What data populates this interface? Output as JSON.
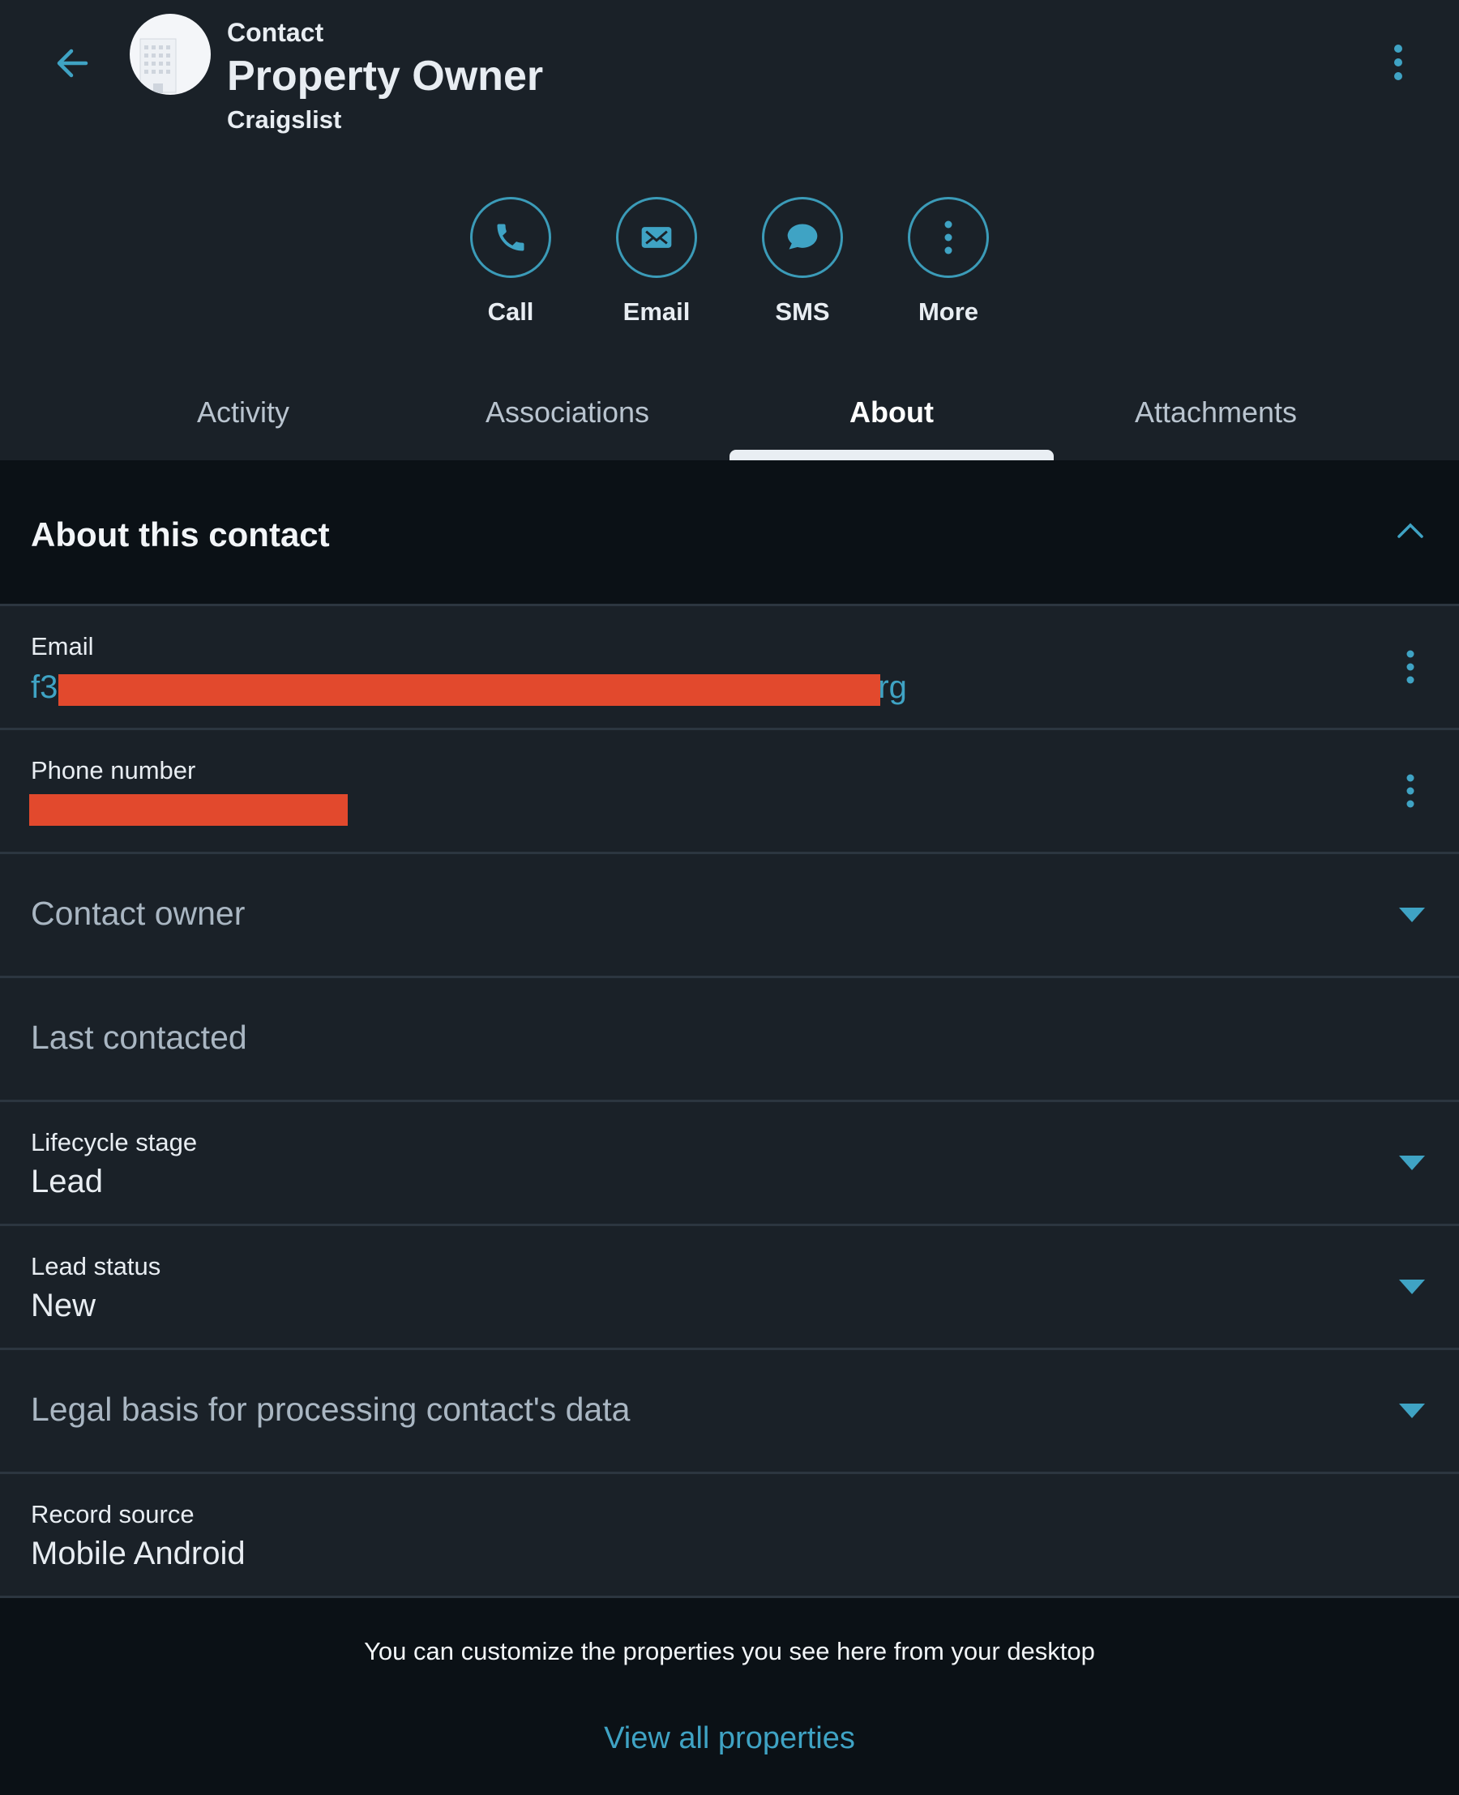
{
  "header": {
    "record_type": "Contact",
    "title": "Property Owner",
    "company": "Craigslist",
    "avatar_icon": "building-icon"
  },
  "actions": [
    {
      "label": "Call",
      "icon": "phone-icon"
    },
    {
      "label": "Email",
      "icon": "envelope-icon"
    },
    {
      "label": "SMS",
      "icon": "chat-bubble-icon"
    },
    {
      "label": "More",
      "icon": "kebab-icon"
    }
  ],
  "tabs": [
    {
      "label": "Activity"
    },
    {
      "label": "Associations"
    },
    {
      "label": "About",
      "active": true
    },
    {
      "label": "Attachments"
    }
  ],
  "section": {
    "title": "About this contact",
    "expanded": true
  },
  "fields": {
    "email": {
      "label": "Email",
      "value_start": "f3",
      "value_end": "rg",
      "redacted": true
    },
    "phone": {
      "label": "Phone number",
      "redacted": true
    },
    "contact_owner": {
      "placeholder": "Contact owner"
    },
    "last_contacted": {
      "placeholder": "Last contacted"
    },
    "lifecycle": {
      "label": "Lifecycle stage",
      "value": "Lead"
    },
    "lead_status": {
      "label": "Lead status",
      "value": "New"
    },
    "legal_basis": {
      "placeholder": "Legal basis for processing contact's data"
    },
    "record_source": {
      "label": "Record source",
      "value": "Mobile Android"
    }
  },
  "footer": {
    "text": "You can customize the properties you see here from your desktop",
    "link": "View all properties"
  },
  "colors": {
    "accent": "#3fa3c4",
    "background": "#1a2128",
    "redaction": "#e2492d"
  }
}
